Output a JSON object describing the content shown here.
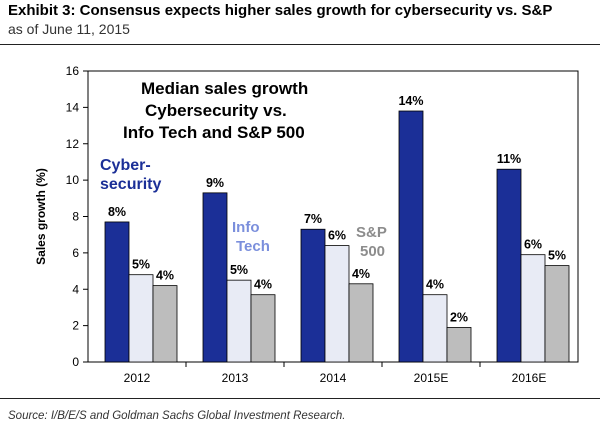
{
  "header": {
    "title": "Exhibit 3: Consensus expects higher sales growth for cybersecurity vs. S&P",
    "subtitle": "as of June 11, 2015"
  },
  "footer": {
    "source": "Source: I/B/E/S and Goldman Sachs Global Investment Research."
  },
  "chart_data": {
    "type": "bar",
    "title_lines": [
      "Median sales growth",
      "Cybersecurity vs.",
      "Info Tech  and S&P 500"
    ],
    "ylabel": "Sales growth (%)",
    "xlabel": "",
    "ylim": [
      0,
      16
    ],
    "yticks": [
      0,
      2,
      4,
      6,
      8,
      10,
      12,
      14,
      16
    ],
    "categories": [
      "2012",
      "2013",
      "2014",
      "2015E",
      "2016E"
    ],
    "series": [
      {
        "name": "Cyber-security",
        "name_lines": [
          "Cyber-",
          "security"
        ],
        "color": "#1b2f97",
        "label_color": "#1b2f97",
        "values": [
          7.7,
          9.3,
          7.3,
          13.8,
          10.6
        ],
        "labels": [
          "8%",
          "9%",
          "7%",
          "14%",
          "11%"
        ]
      },
      {
        "name": "Info Tech",
        "name_lines": [
          "Info",
          "Tech"
        ],
        "color": "#e8ebf5",
        "label_color": "#7b8fdc",
        "values": [
          4.8,
          4.5,
          6.4,
          3.7,
          5.9
        ],
        "labels": [
          "5%",
          "5%",
          "6%",
          "4%",
          "6%"
        ]
      },
      {
        "name": "S&P 500",
        "name_lines": [
          "S&P",
          "500"
        ],
        "color": "#bdbdbd",
        "label_color": "#8c8c8c",
        "values": [
          4.2,
          3.7,
          4.3,
          1.9,
          5.3
        ],
        "labels": [
          "4%",
          "4%",
          "4%",
          "2%",
          "5%"
        ]
      }
    ],
    "grid": false,
    "legend": "inline labels inside plot"
  }
}
